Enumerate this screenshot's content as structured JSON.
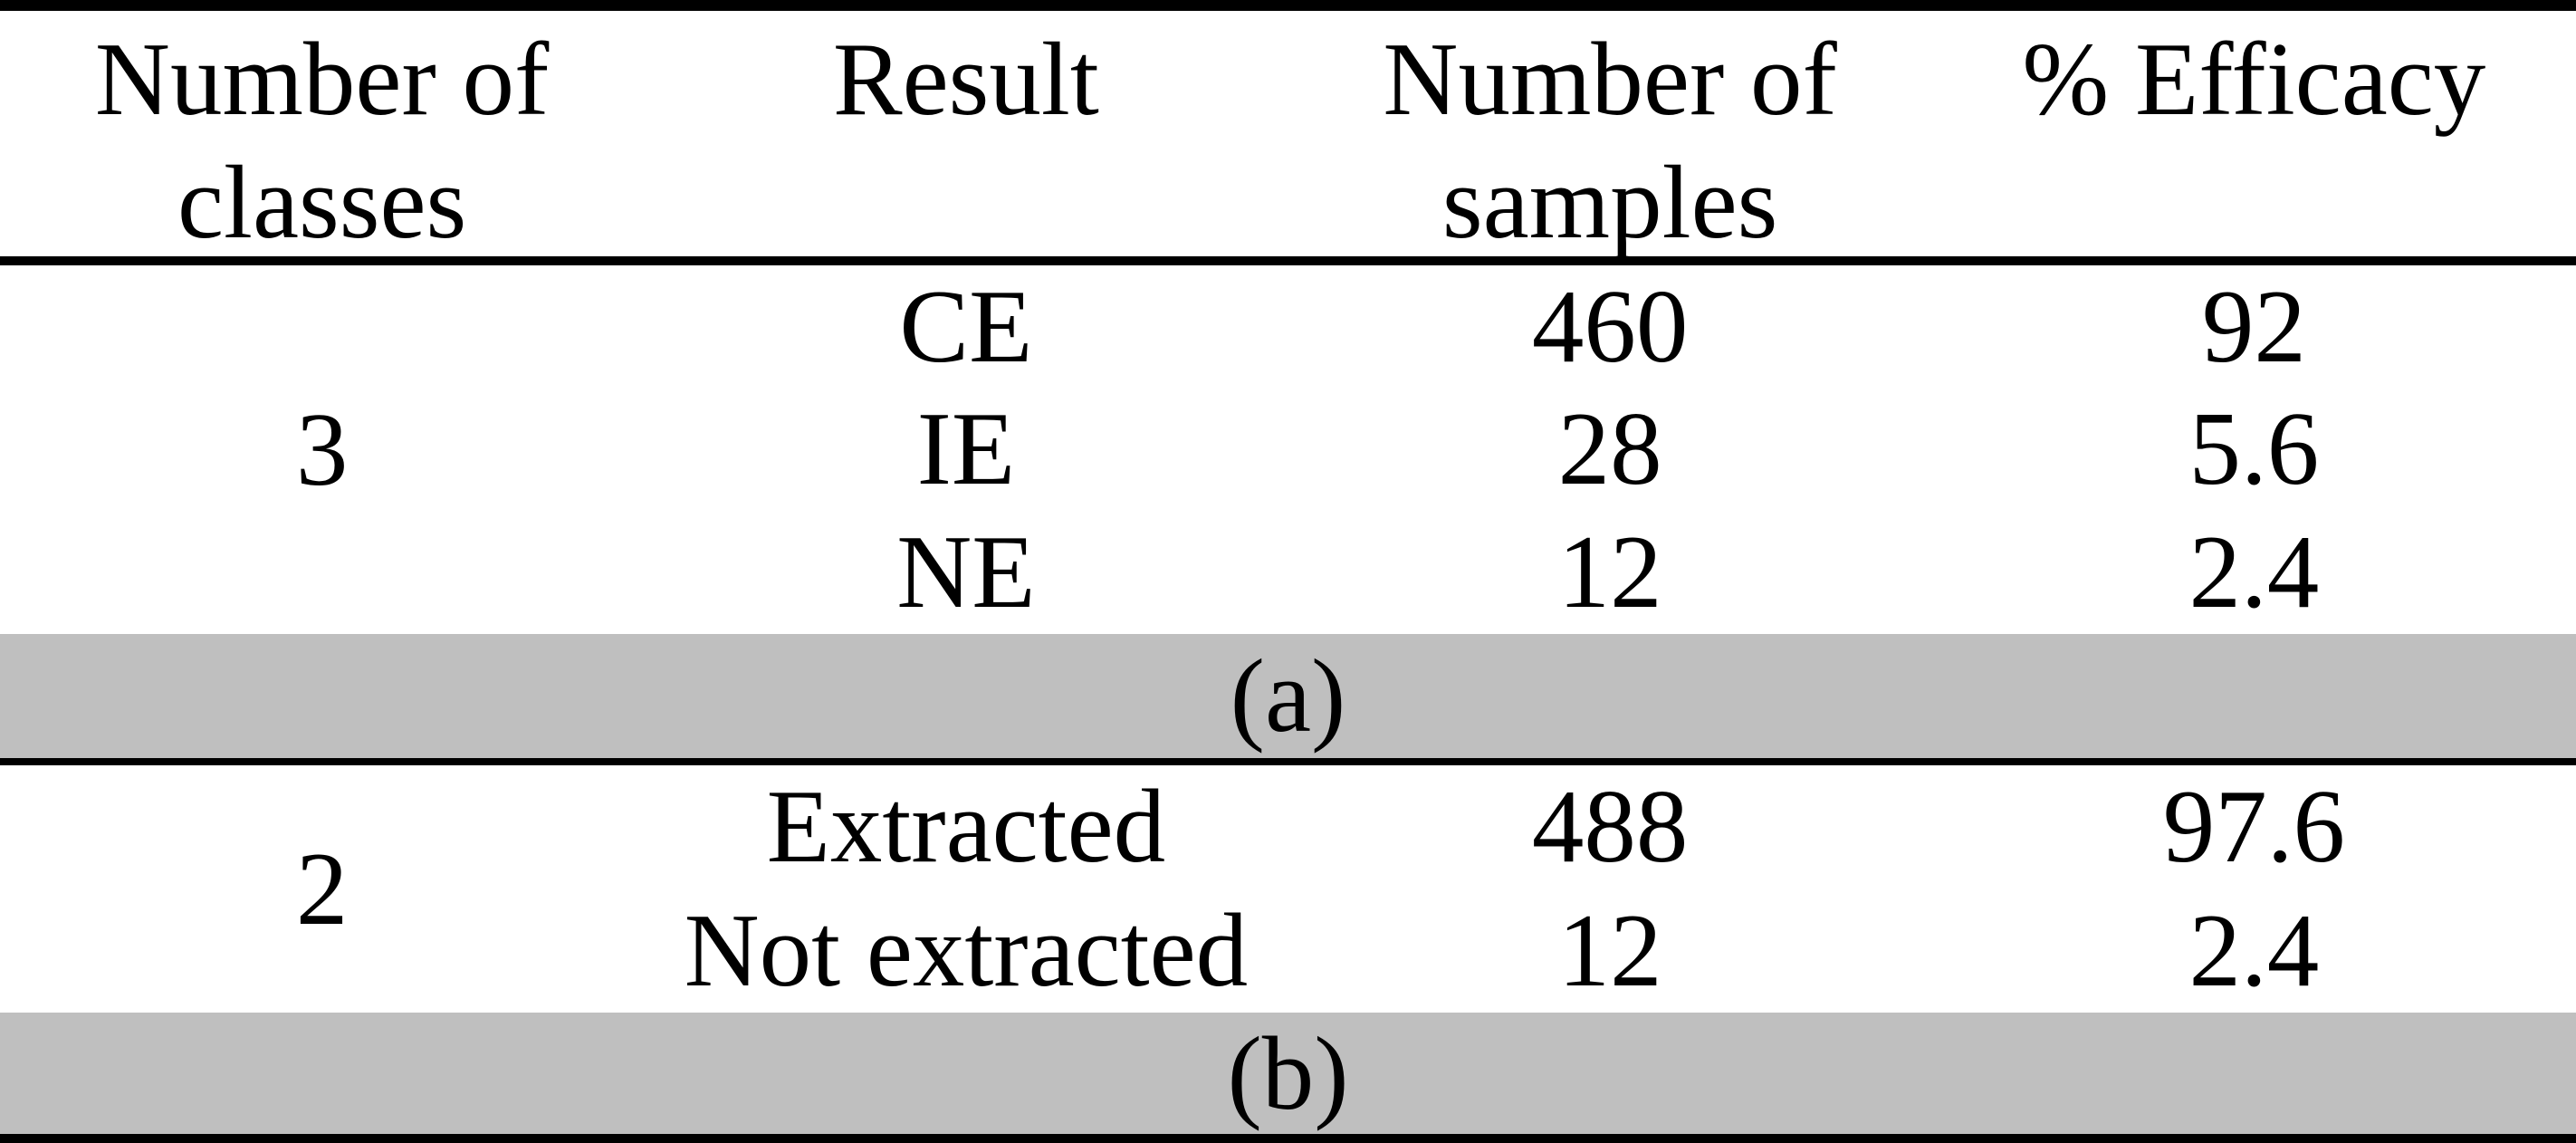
{
  "table": {
    "columns": [
      "Number of classes",
      "Result",
      "Number of samples",
      "% Efficacy"
    ],
    "sections": [
      {
        "label": "(a)",
        "classes": "3",
        "rows": [
          {
            "result": "CE",
            "samples": "460",
            "efficacy": "92"
          },
          {
            "result": "IE",
            "samples": "28",
            "efficacy": "5.6"
          },
          {
            "result": "NE",
            "samples": "12",
            "efficacy": "2.4"
          }
        ]
      },
      {
        "label": "(b)",
        "classes": "2",
        "rows": [
          {
            "result": "Extracted",
            "samples": "488",
            "efficacy": "97.6"
          },
          {
            "result": "Not extracted",
            "samples": "12",
            "efficacy": "2.4"
          }
        ]
      }
    ]
  },
  "colors": {
    "background": "#ffffff",
    "text": "#000000",
    "rule": "#000000",
    "band": "#bfbfbf"
  }
}
